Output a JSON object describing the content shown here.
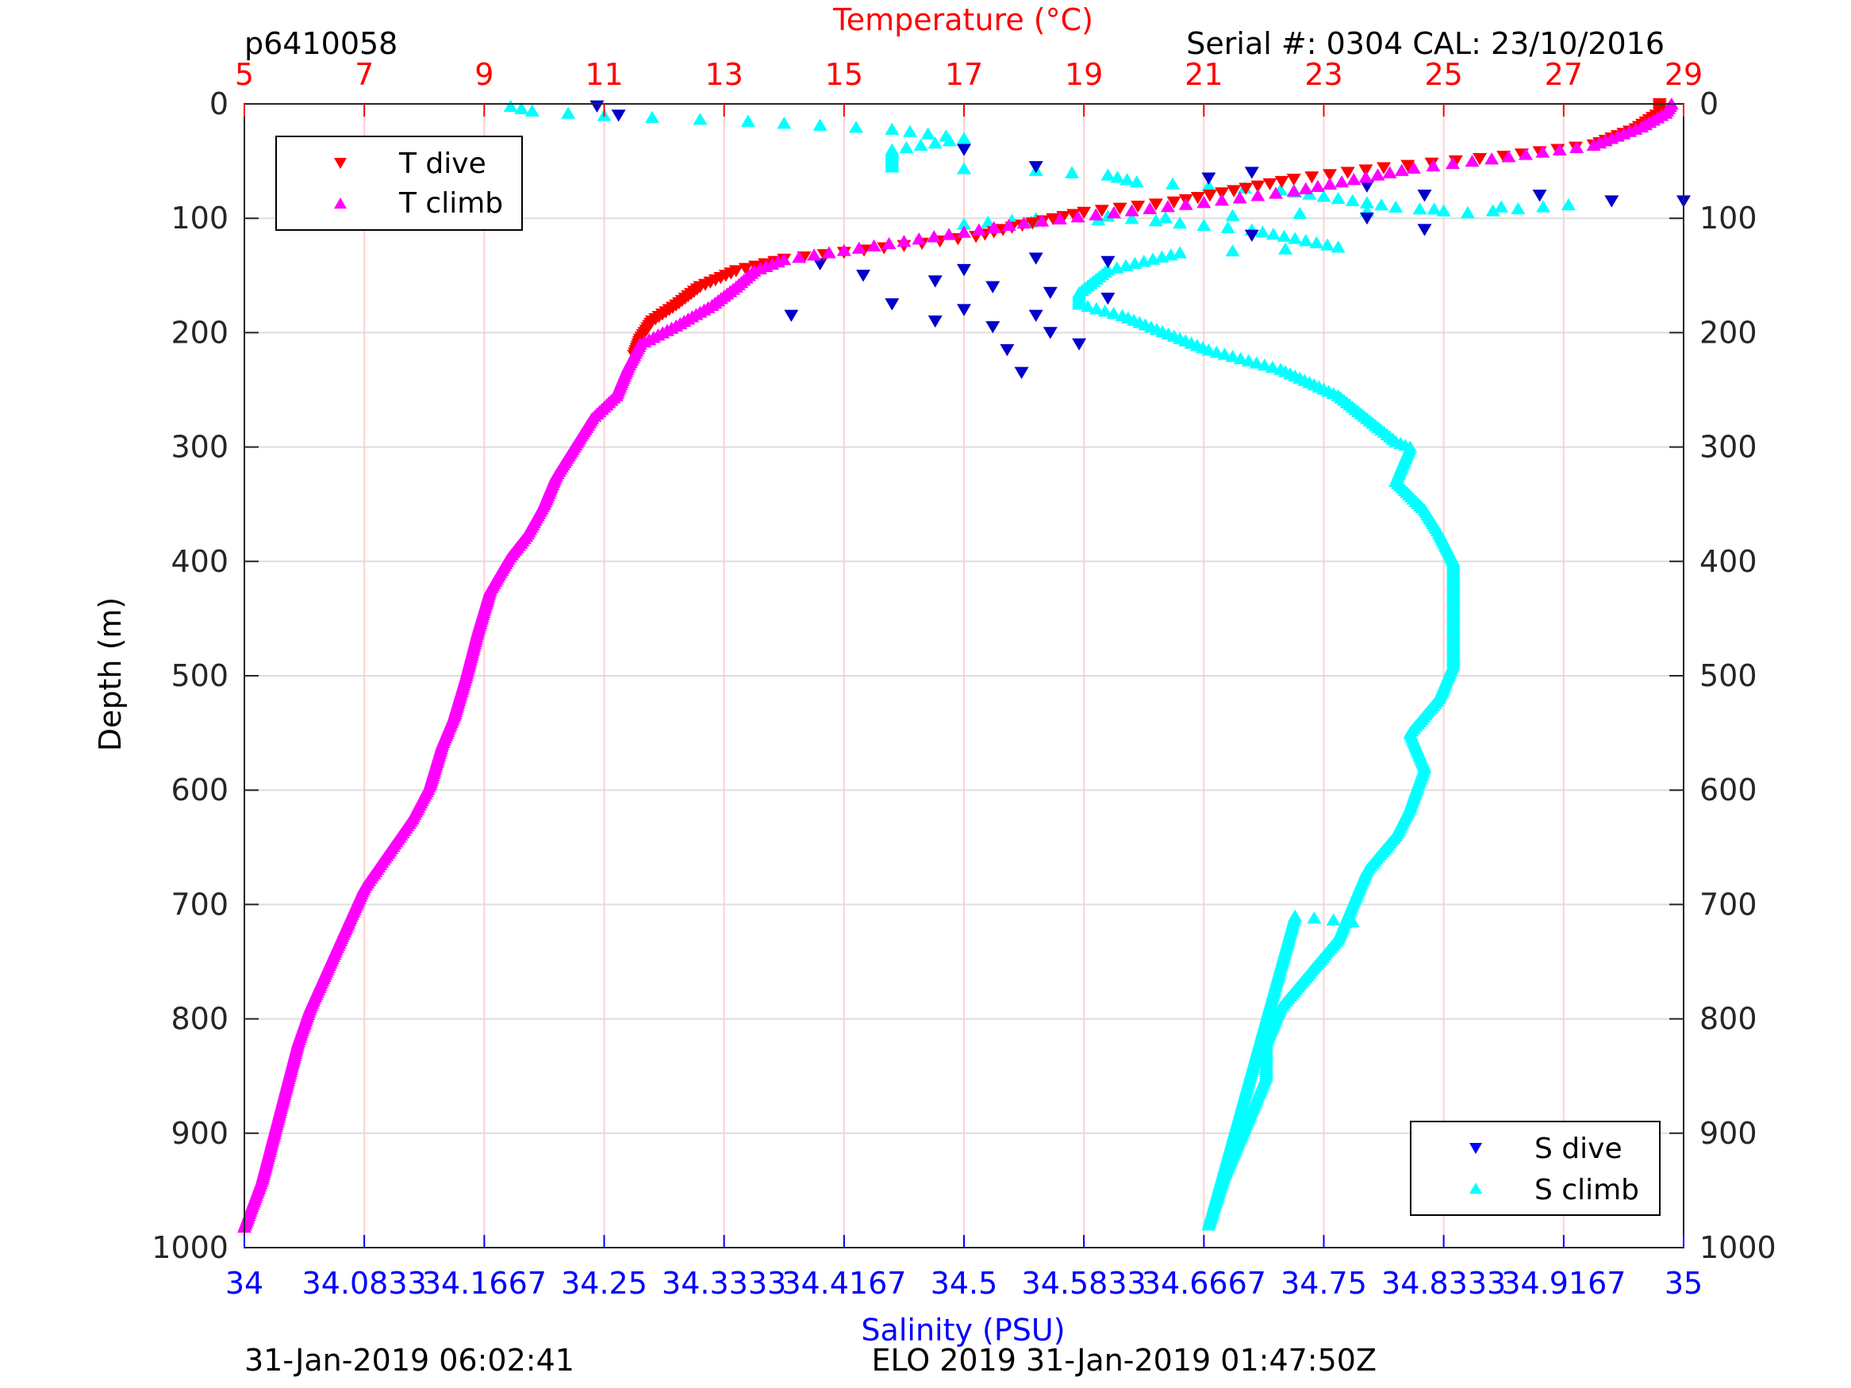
{
  "header": {
    "left": "p6410058",
    "right": "Serial #: 0304  CAL: 23/10/2016"
  },
  "footer": {
    "left": "31-Jan-2019 06:02:41",
    "center": "ELO 2019 31-Jan-2019 01:47:50Z"
  },
  "colors": {
    "temperature": "#ff0000",
    "salinity": "#0000ff",
    "t_dive": "#ff0000",
    "t_climb": "#ff00ff",
    "s_dive": "#0000cc",
    "s_climb": "#00ffff",
    "grid_temperature": "#ffd0d0",
    "grid_depth": "#dddddd"
  },
  "chart_data": {
    "type": "scatter",
    "title": "",
    "ylabel": "Depth (m)",
    "ylim": [
      0,
      1000
    ],
    "y_reversed": true,
    "y_ticks": [
      "0",
      "100",
      "200",
      "300",
      "400",
      "500",
      "600",
      "700",
      "800",
      "900",
      "1000"
    ],
    "temperature_axis": {
      "label": "Temperature (°C)",
      "position": "top",
      "range": [
        5,
        29
      ],
      "ticks": [
        "5",
        "7",
        "9",
        "11",
        "13",
        "15",
        "17",
        "19",
        "21",
        "23",
        "25",
        "27",
        "29"
      ]
    },
    "salinity_axis": {
      "label": "Salinity (PSU)",
      "position": "bottom",
      "range": [
        34,
        35
      ],
      "ticks": [
        "34",
        "34.0833",
        "34.1667",
        "34.25",
        "34.3333",
        "34.4167",
        "34.5",
        "34.5833",
        "34.6667",
        "34.75",
        "34.8333",
        "34.9167",
        "35"
      ]
    },
    "legends": [
      {
        "placement": "top-left",
        "entries": [
          "T dive",
          "T climb"
        ]
      },
      {
        "placement": "bottom-right",
        "entries": [
          "S dive",
          "S climb"
        ]
      }
    ],
    "series": [
      {
        "name": "T dive",
        "axis": "temperature",
        "marker": "triangle-down",
        "points": [
          [
            28.6,
            0
          ],
          [
            28.6,
            8
          ],
          [
            28.2,
            22
          ],
          [
            27.5,
            36
          ],
          [
            26.0,
            46
          ],
          [
            24.0,
            56
          ],
          [
            22.5,
            66
          ],
          [
            21.5,
            76
          ],
          [
            20.5,
            86
          ],
          [
            19.0,
            95
          ],
          [
            17.8,
            108
          ],
          [
            17.2,
            116
          ],
          [
            16.0,
            124
          ],
          [
            15.0,
            130
          ],
          [
            14.0,
            136
          ],
          [
            13.2,
            146
          ],
          [
            12.6,
            160
          ],
          [
            12.2,
            176
          ],
          [
            11.8,
            190
          ],
          [
            11.6,
            206
          ],
          [
            11.5,
            220
          ]
        ]
      },
      {
        "name": "T climb",
        "axis": "temperature",
        "marker": "triangle-up",
        "points": [
          [
            28.8,
            0
          ],
          [
            28.7,
            8
          ],
          [
            28.3,
            20
          ],
          [
            27.5,
            36
          ],
          [
            25.8,
            48
          ],
          [
            24.5,
            56
          ],
          [
            23.5,
            66
          ],
          [
            22.5,
            76
          ],
          [
            21.0,
            86
          ],
          [
            19.5,
            95
          ],
          [
            18.0,
            104
          ],
          [
            17.0,
            112
          ],
          [
            16.0,
            120
          ],
          [
            15.0,
            128
          ],
          [
            14.0,
            136
          ],
          [
            13.5,
            146
          ],
          [
            13.2,
            160
          ],
          [
            12.8,
            176
          ],
          [
            12.2,
            194
          ],
          [
            11.6,
            210
          ],
          [
            11.4,
            230
          ],
          [
            11.2,
            255
          ],
          [
            10.8,
            275
          ],
          [
            10.5,
            300
          ],
          [
            10.2,
            325
          ],
          [
            10.0,
            350
          ],
          [
            9.7,
            378
          ],
          [
            9.4,
            398
          ],
          [
            9.1,
            425
          ],
          [
            8.9,
            460
          ],
          [
            8.7,
            500
          ],
          [
            8.5,
            535
          ],
          [
            8.3,
            560
          ],
          [
            8.1,
            595
          ],
          [
            7.8,
            625
          ],
          [
            7.4,
            655
          ],
          [
            7.0,
            685
          ],
          [
            6.7,
            720
          ],
          [
            6.4,
            755
          ],
          [
            6.1,
            790
          ],
          [
            5.9,
            820
          ],
          [
            5.7,
            860
          ],
          [
            5.5,
            900
          ],
          [
            5.3,
            940
          ],
          [
            5.0,
            982
          ]
        ]
      },
      {
        "name": "S dive",
        "axis": "salinity",
        "marker": "triangle-down",
        "points": [
          [
            34.245,
            2
          ],
          [
            34.26,
            10
          ],
          [
            34.5,
            40
          ],
          [
            34.55,
            55
          ],
          [
            34.7,
            60
          ],
          [
            34.67,
            65
          ],
          [
            34.78,
            72
          ],
          [
            34.82,
            80
          ],
          [
            34.9,
            80
          ],
          [
            34.95,
            85
          ],
          [
            35.0,
            85
          ],
          [
            34.78,
            100
          ],
          [
            34.82,
            110
          ],
          [
            34.7,
            115
          ],
          [
            34.55,
            135
          ],
          [
            34.6,
            138
          ],
          [
            34.5,
            145
          ],
          [
            34.43,
            150
          ],
          [
            34.48,
            155
          ],
          [
            34.52,
            160
          ],
          [
            34.56,
            165
          ],
          [
            34.6,
            170
          ],
          [
            34.45,
            175
          ],
          [
            34.5,
            180
          ],
          [
            34.55,
            185
          ],
          [
            34.48,
            190
          ],
          [
            34.52,
            195
          ],
          [
            34.56,
            200
          ],
          [
            34.58,
            210
          ],
          [
            34.53,
            215
          ],
          [
            34.54,
            235
          ],
          [
            34.38,
            185
          ],
          [
            34.4,
            140
          ]
        ]
      },
      {
        "name": "S climb",
        "axis": "salinity",
        "marker": "triangle-up",
        "points": [
          [
            34.185,
            2
          ],
          [
            34.2,
            6
          ],
          [
            34.25,
            10
          ],
          [
            34.35,
            15
          ],
          [
            34.45,
            22
          ],
          [
            34.5,
            30
          ],
          [
            34.45,
            40
          ],
          [
            34.45,
            55
          ],
          [
            34.55,
            58
          ],
          [
            34.6,
            62
          ],
          [
            34.62,
            68
          ],
          [
            34.72,
            75
          ],
          [
            34.8,
            90
          ],
          [
            34.85,
            95
          ],
          [
            34.92,
            88
          ],
          [
            34.5,
            105
          ],
          [
            34.55,
            100
          ],
          [
            34.6,
            98
          ],
          [
            34.7,
            110
          ],
          [
            34.76,
            125
          ],
          [
            34.65,
            130
          ],
          [
            34.6,
            145
          ],
          [
            34.58,
            165
          ],
          [
            34.58,
            175
          ],
          [
            34.61,
            185
          ],
          [
            34.63,
            195
          ],
          [
            34.67,
            215
          ],
          [
            34.72,
            232
          ],
          [
            34.76,
            255
          ],
          [
            34.78,
            275
          ],
          [
            34.8,
            295
          ],
          [
            34.81,
            300
          ],
          [
            34.8,
            330
          ],
          [
            34.82,
            355
          ],
          [
            34.83,
            375
          ],
          [
            34.84,
            400
          ],
          [
            34.84,
            450
          ],
          [
            34.84,
            490
          ],
          [
            34.83,
            520
          ],
          [
            34.81,
            550
          ],
          [
            34.82,
            580
          ],
          [
            34.81,
            615
          ],
          [
            34.8,
            640
          ],
          [
            34.78,
            670
          ],
          [
            34.77,
            700
          ],
          [
            34.76,
            730
          ],
          [
            34.74,
            760
          ],
          [
            34.72,
            790
          ],
          [
            34.71,
            820
          ],
          [
            34.71,
            850
          ],
          [
            34.7,
            880
          ],
          [
            34.69,
            910
          ],
          [
            34.68,
            940
          ],
          [
            34.67,
            980
          ],
          [
            34.73,
            710
          ],
          [
            34.77,
            715
          ]
        ]
      }
    ]
  }
}
